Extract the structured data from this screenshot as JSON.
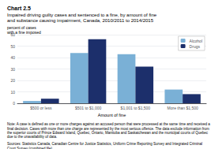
{
  "chart_data": {
    "type": "bar",
    "title": "Chart 2.5",
    "subtitle": [
      "Impaired driving guilty cases and sentenced to a fine, by amount of fine",
      "and substance causing impairment, Canada, 2010/2011 to 2014/2015"
    ],
    "ylabel": [
      "percent of cases",
      "with a fine imposed"
    ],
    "xlabel": "Amount of fine",
    "categories": [
      "$500 or less",
      "$501 to $1,000",
      "$1,001 to $1,500",
      "More than $1,500"
    ],
    "series": [
      {
        "name": "Alcohol",
        "color": "#7ab0d6",
        "values": [
          2,
          44,
          43,
          12
        ]
      },
      {
        "name": "Drugs",
        "color": "#1c2f6b",
        "values": [
          4,
          56,
          32,
          8
        ]
      }
    ],
    "ylim": [
      0,
      60
    ],
    "yticks": [
      0,
      10,
      20,
      30,
      40,
      50,
      60
    ],
    "grid": true,
    "legend": "upper right",
    "annotations": [
      "Note: A case is defined as one or more charges against an accused person that were processed at the same time and received a final decision. Cases with more than one charge are represented by the most serious offence. The data exclude information from the superior courts of Prince Edward Island, Quebec, Ontario, Manitoba and Saskatchewan and the municipal courts of Quebec due to the unavailability of data.",
      "Sources: Statistics Canada, Canadian Centre for Justice Statistics, Uniform Crime Reporting Survey and Integrated Criminal Court Survey (combined file)."
    ]
  }
}
